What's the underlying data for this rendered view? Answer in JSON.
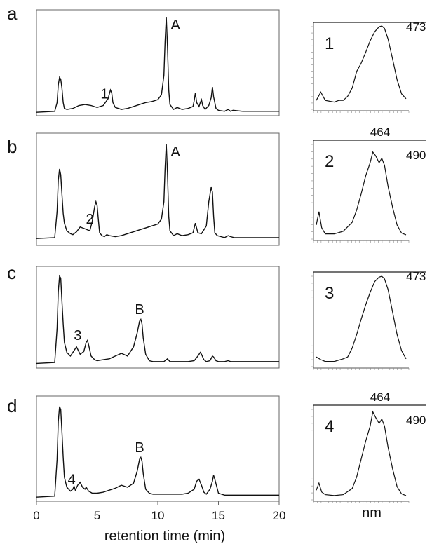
{
  "figure": {
    "x_axis_label": "retention time (min)",
    "spectrum_axis_label": "nm",
    "x_ticks": [
      0,
      5,
      10,
      15,
      20
    ]
  },
  "chart_data": [
    {
      "type": "line",
      "panel": "a",
      "xlim": [
        0,
        20
      ],
      "peak_labels": [
        {
          "text": "1",
          "x": 5.6
        },
        {
          "text": "A",
          "x": 10.7
        }
      ],
      "x": [
        0,
        1.5,
        1.7,
        1.8,
        1.9,
        2.0,
        2.1,
        2.2,
        2.3,
        2.5,
        3.0,
        3.5,
        4.0,
        4.5,
        5.0,
        5.5,
        5.9,
        6.1,
        6.2,
        6.3,
        6.5,
        7.0,
        7.5,
        8.0,
        8.5,
        9.0,
        9.5,
        10.0,
        10.3,
        10.5,
        10.6,
        10.7,
        10.8,
        10.9,
        11.0,
        11.3,
        11.6,
        12.0,
        12.5,
        12.9,
        13.0,
        13.1,
        13.2,
        13.4,
        13.5,
        13.6,
        13.7,
        13.9,
        14.2,
        14.4,
        14.5,
        14.6,
        14.8,
        15.0,
        15.5,
        15.8,
        16.0,
        16.2,
        17.0,
        18.0,
        20.0
      ],
      "y": [
        0.02,
        0.03,
        0.12,
        0.3,
        0.38,
        0.36,
        0.27,
        0.12,
        0.06,
        0.05,
        0.06,
        0.09,
        0.1,
        0.09,
        0.07,
        0.09,
        0.16,
        0.25,
        0.22,
        0.12,
        0.07,
        0.05,
        0.06,
        0.08,
        0.1,
        0.12,
        0.13,
        0.15,
        0.2,
        0.4,
        0.75,
        1.0,
        0.7,
        0.25,
        0.1,
        0.05,
        0.07,
        0.05,
        0.06,
        0.08,
        0.14,
        0.22,
        0.12,
        0.08,
        0.12,
        0.15,
        0.09,
        0.05,
        0.09,
        0.17,
        0.28,
        0.18,
        0.06,
        0.04,
        0.03,
        0.05,
        0.03,
        0.04,
        0.03,
        0.03,
        0.03
      ]
    },
    {
      "type": "line",
      "panel": "b",
      "xlim": [
        0,
        20
      ],
      "peak_labels": [
        {
          "text": "2",
          "x": 4.4
        },
        {
          "text": "A",
          "x": 10.7
        }
      ],
      "x": [
        0,
        1.5,
        1.7,
        1.8,
        1.9,
        2.0,
        2.1,
        2.2,
        2.3,
        2.5,
        2.8,
        3.0,
        3.3,
        3.6,
        4.0,
        4.4,
        4.6,
        4.8,
        4.9,
        5.0,
        5.1,
        5.2,
        5.4,
        5.6,
        5.8,
        6.0,
        6.5,
        7.0,
        7.5,
        8.0,
        8.5,
        9.0,
        9.5,
        10.0,
        10.3,
        10.5,
        10.6,
        10.7,
        10.8,
        10.9,
        11.0,
        11.3,
        11.6,
        12.0,
        12.5,
        12.9,
        13.0,
        13.1,
        13.3,
        13.6,
        14.0,
        14.2,
        14.4,
        14.5,
        14.6,
        14.7,
        14.9,
        15.2,
        15.5,
        15.8,
        16.0,
        16.3,
        17.0,
        18.0,
        20.0
      ],
      "y": [
        0.02,
        0.03,
        0.3,
        0.62,
        0.74,
        0.68,
        0.48,
        0.28,
        0.18,
        0.1,
        0.07,
        0.06,
        0.09,
        0.14,
        0.12,
        0.1,
        0.2,
        0.35,
        0.4,
        0.36,
        0.22,
        0.08,
        0.05,
        0.04,
        0.06,
        0.05,
        0.04,
        0.05,
        0.07,
        0.09,
        0.11,
        0.13,
        0.15,
        0.17,
        0.22,
        0.4,
        0.75,
        1.0,
        0.7,
        0.25,
        0.1,
        0.05,
        0.07,
        0.05,
        0.06,
        0.08,
        0.13,
        0.18,
        0.08,
        0.07,
        0.15,
        0.4,
        0.55,
        0.5,
        0.25,
        0.08,
        0.05,
        0.04,
        0.03,
        0.05,
        0.04,
        0.03,
        0.03,
        0.03,
        0.03
      ]
    },
    {
      "type": "line",
      "panel": "c",
      "xlim": [
        0,
        20
      ],
      "peak_labels": [
        {
          "text": "3",
          "x": 3.4
        },
        {
          "text": "B",
          "x": 8.5
        }
      ],
      "x": [
        0,
        1.5,
        1.7,
        1.8,
        1.9,
        2.0,
        2.1,
        2.2,
        2.3,
        2.5,
        2.8,
        3.0,
        3.3,
        3.6,
        3.9,
        4.1,
        4.2,
        4.3,
        4.5,
        4.8,
        5.0,
        5.5,
        6.0,
        6.5,
        7.0,
        7.5,
        8.0,
        8.3,
        8.5,
        8.6,
        8.7,
        8.8,
        9.0,
        9.3,
        9.6,
        10.0,
        10.5,
        10.8,
        11.0,
        11.5,
        12.0,
        12.5,
        13.0,
        13.3,
        13.5,
        13.6,
        13.8,
        14.0,
        14.3,
        14.5,
        14.6,
        14.8,
        15.0,
        15.5,
        15.8,
        16.0,
        17.0,
        18.0,
        20.0
      ],
      "y": [
        0.02,
        0.03,
        0.4,
        0.8,
        0.97,
        0.95,
        0.7,
        0.45,
        0.25,
        0.14,
        0.1,
        0.14,
        0.2,
        0.12,
        0.15,
        0.25,
        0.27,
        0.22,
        0.1,
        0.06,
        0.05,
        0.06,
        0.07,
        0.1,
        0.13,
        0.1,
        0.2,
        0.35,
        0.48,
        0.5,
        0.45,
        0.3,
        0.12,
        0.05,
        0.04,
        0.04,
        0.04,
        0.07,
        0.04,
        0.04,
        0.04,
        0.04,
        0.05,
        0.1,
        0.14,
        0.12,
        0.06,
        0.04,
        0.05,
        0.1,
        0.09,
        0.05,
        0.04,
        0.04,
        0.05,
        0.04,
        0.04,
        0.04,
        0.04
      ]
    },
    {
      "type": "line",
      "panel": "d",
      "xlim": [
        0,
        20
      ],
      "peak_labels": [
        {
          "text": "4",
          "x": 2.9
        },
        {
          "text": "B",
          "x": 8.5
        }
      ],
      "x": [
        0,
        1.5,
        1.7,
        1.8,
        1.9,
        2.0,
        2.1,
        2.2,
        2.3,
        2.5,
        2.8,
        3.0,
        3.1,
        3.2,
        3.4,
        3.6,
        3.8,
        4.0,
        4.1,
        4.3,
        4.6,
        5.0,
        5.5,
        6.0,
        6.5,
        7.0,
        7.5,
        8.0,
        8.3,
        8.5,
        8.6,
        8.7,
        8.8,
        9.0,
        9.3,
        9.6,
        10.0,
        10.5,
        11.0,
        12.0,
        12.5,
        13.0,
        13.2,
        13.4,
        13.6,
        13.8,
        14.0,
        14.3,
        14.5,
        14.6,
        14.7,
        15.0,
        15.5,
        16.0,
        17.0,
        18.0,
        20.0
      ],
      "y": [
        0.02,
        0.03,
        0.4,
        0.78,
        0.93,
        0.9,
        0.68,
        0.42,
        0.22,
        0.12,
        0.08,
        0.1,
        0.13,
        0.09,
        0.14,
        0.17,
        0.12,
        0.1,
        0.12,
        0.08,
        0.06,
        0.06,
        0.07,
        0.09,
        0.11,
        0.14,
        0.12,
        0.16,
        0.28,
        0.4,
        0.42,
        0.38,
        0.26,
        0.1,
        0.06,
        0.05,
        0.05,
        0.05,
        0.05,
        0.05,
        0.06,
        0.1,
        0.18,
        0.2,
        0.14,
        0.07,
        0.05,
        0.1,
        0.18,
        0.24,
        0.2,
        0.06,
        0.04,
        0.04,
        0.04,
        0.04,
        0.04
      ]
    },
    {
      "type": "line",
      "panel": "1",
      "peak_wavelength_labels": [
        "473"
      ],
      "x": [
        0,
        0.05,
        0.1,
        0.2,
        0.25,
        0.3,
        0.35,
        0.4,
        0.45,
        0.5,
        0.55,
        0.6,
        0.65,
        0.7,
        0.73,
        0.76,
        0.8,
        0.85,
        0.9,
        0.95,
        1.0
      ],
      "y": [
        0.1,
        0.2,
        0.1,
        0.08,
        0.1,
        0.1,
        0.15,
        0.25,
        0.45,
        0.55,
        0.68,
        0.82,
        0.93,
        0.99,
        1.0,
        0.97,
        0.84,
        0.6,
        0.35,
        0.18,
        0.12
      ]
    },
    {
      "type": "line",
      "panel": "2",
      "peak_wavelength_labels": [
        "464",
        "490"
      ],
      "x": [
        0,
        0.03,
        0.06,
        0.1,
        0.2,
        0.3,
        0.4,
        0.45,
        0.5,
        0.55,
        0.6,
        0.63,
        0.66,
        0.7,
        0.73,
        0.76,
        0.8,
        0.85,
        0.9,
        0.95,
        1.0
      ],
      "y": [
        0.15,
        0.3,
        0.12,
        0.05,
        0.05,
        0.08,
        0.18,
        0.32,
        0.5,
        0.7,
        0.85,
        0.97,
        0.93,
        0.85,
        0.9,
        0.82,
        0.58,
        0.35,
        0.15,
        0.06,
        0.04
      ]
    },
    {
      "type": "line",
      "panel": "3",
      "peak_wavelength_labels": [
        "473"
      ],
      "x": [
        0,
        0.05,
        0.1,
        0.2,
        0.3,
        0.35,
        0.4,
        0.45,
        0.5,
        0.55,
        0.6,
        0.65,
        0.7,
        0.73,
        0.76,
        0.8,
        0.85,
        0.9,
        0.95,
        1.0
      ],
      "y": [
        0.1,
        0.07,
        0.05,
        0.05,
        0.08,
        0.1,
        0.2,
        0.35,
        0.52,
        0.68,
        0.82,
        0.94,
        0.99,
        1.0,
        0.97,
        0.85,
        0.6,
        0.35,
        0.17,
        0.08
      ]
    },
    {
      "type": "line",
      "panel": "4",
      "peak_wavelength_labels": [
        "464",
        "490"
      ],
      "x": [
        0,
        0.03,
        0.06,
        0.1,
        0.2,
        0.3,
        0.4,
        0.45,
        0.5,
        0.55,
        0.6,
        0.63,
        0.66,
        0.7,
        0.73,
        0.76,
        0.8,
        0.85,
        0.9,
        0.95,
        1.0
      ],
      "y": [
        0.1,
        0.18,
        0.08,
        0.05,
        0.04,
        0.05,
        0.12,
        0.25,
        0.45,
        0.65,
        0.82,
        0.98,
        0.92,
        0.85,
        0.9,
        0.82,
        0.58,
        0.34,
        0.14,
        0.06,
        0.04
      ]
    }
  ]
}
